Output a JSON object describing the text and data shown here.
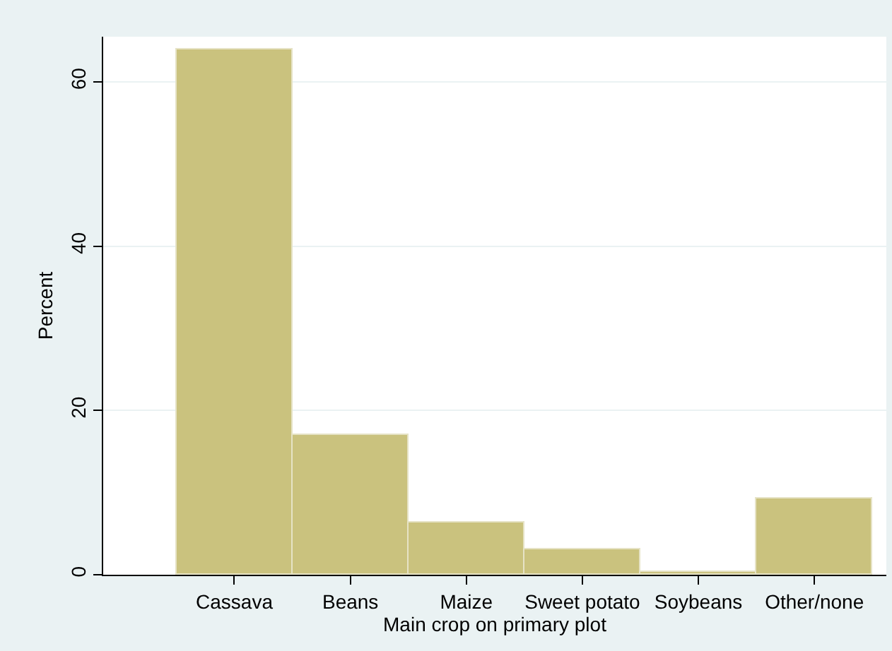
{
  "chart_data": {
    "type": "bar",
    "xlabel": "Main crop on primary plot",
    "ylabel": "Percent",
    "categories": [
      "Cassava",
      "Beans",
      "Maize",
      "Sweet potato",
      "Soybeans",
      "Other/none"
    ],
    "values": [
      63.9,
      17.0,
      6.4,
      3.1,
      0.3,
      9.3
    ],
    "color": "#cac27e",
    "ylim": [
      0,
      65.5
    ],
    "yticks": [
      0,
      20,
      40,
      60
    ],
    "grid": "y",
    "legend": false
  }
}
